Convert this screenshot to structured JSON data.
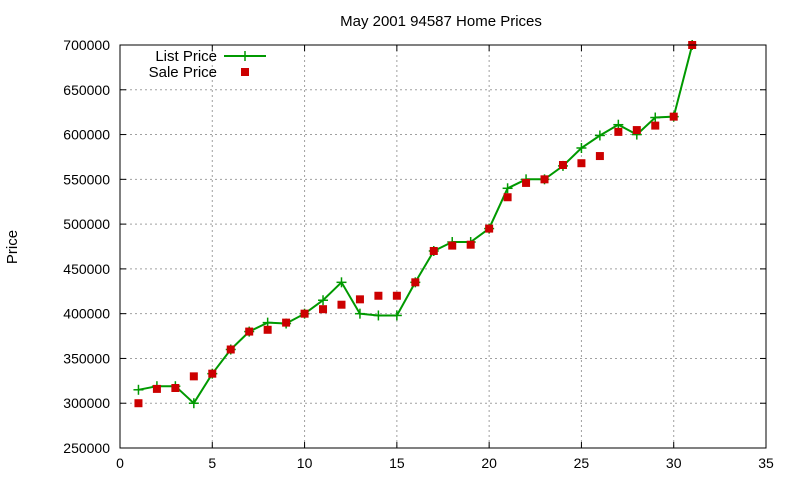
{
  "chart_data": {
    "type": "line",
    "title": "May 2001 94587 Home Prices",
    "xlabel": "",
    "ylabel": "Price",
    "xlim": [
      0,
      35
    ],
    "ylim": [
      250000,
      700000
    ],
    "x_ticks": [
      0,
      5,
      10,
      15,
      20,
      25,
      30,
      35
    ],
    "y_ticks": [
      250000,
      300000,
      350000,
      400000,
      450000,
      500000,
      550000,
      600000,
      650000,
      700000
    ],
    "grid": true,
    "legend_position": "top-left",
    "series": [
      {
        "name": "List Price",
        "style": "line+cross",
        "color": "#009900",
        "points": [
          [
            1,
            315000
          ],
          [
            2,
            319000
          ],
          [
            3,
            319000
          ],
          [
            4,
            300000
          ],
          [
            5,
            333000
          ],
          [
            6,
            360000
          ],
          [
            7,
            380000
          ],
          [
            8,
            390000
          ],
          [
            9,
            389000
          ],
          [
            10,
            400000
          ],
          [
            11,
            415000
          ],
          [
            12,
            435000
          ],
          [
            13,
            400000
          ],
          [
            14,
            398000
          ],
          [
            15,
            398000
          ],
          [
            16,
            435000
          ],
          [
            17,
            470000
          ],
          [
            18,
            480000
          ],
          [
            19,
            480000
          ],
          [
            20,
            495000
          ],
          [
            21,
            540000
          ],
          [
            22,
            550000
          ],
          [
            23,
            550000
          ],
          [
            24,
            565000
          ],
          [
            25,
            585000
          ],
          [
            26,
            599000
          ],
          [
            27,
            611000
          ],
          [
            28,
            600000
          ],
          [
            29,
            619000
          ],
          [
            30,
            620000
          ],
          [
            31,
            700000
          ]
        ]
      },
      {
        "name": "Sale Price",
        "style": "square",
        "color": "#cc0000",
        "points": [
          [
            1,
            300000
          ],
          [
            2,
            316000
          ],
          [
            3,
            317000
          ],
          [
            4,
            330000
          ],
          [
            5,
            333000
          ],
          [
            6,
            360000
          ],
          [
            7,
            380000
          ],
          [
            8,
            382000
          ],
          [
            9,
            390000
          ],
          [
            10,
            400000
          ],
          [
            11,
            405000
          ],
          [
            12,
            410000
          ],
          [
            13,
            416000
          ],
          [
            14,
            420000
          ],
          [
            15,
            420000
          ],
          [
            16,
            435000
          ],
          [
            17,
            470000
          ],
          [
            18,
            476000
          ],
          [
            19,
            477000
          ],
          [
            20,
            495000
          ],
          [
            21,
            530000
          ],
          [
            22,
            546000
          ],
          [
            23,
            550000
          ],
          [
            24,
            566000
          ],
          [
            25,
            568000
          ],
          [
            26,
            576000
          ],
          [
            27,
            603000
          ],
          [
            28,
            605000
          ],
          [
            29,
            610000
          ],
          [
            30,
            620000
          ],
          [
            31,
            700000
          ]
        ]
      }
    ]
  }
}
